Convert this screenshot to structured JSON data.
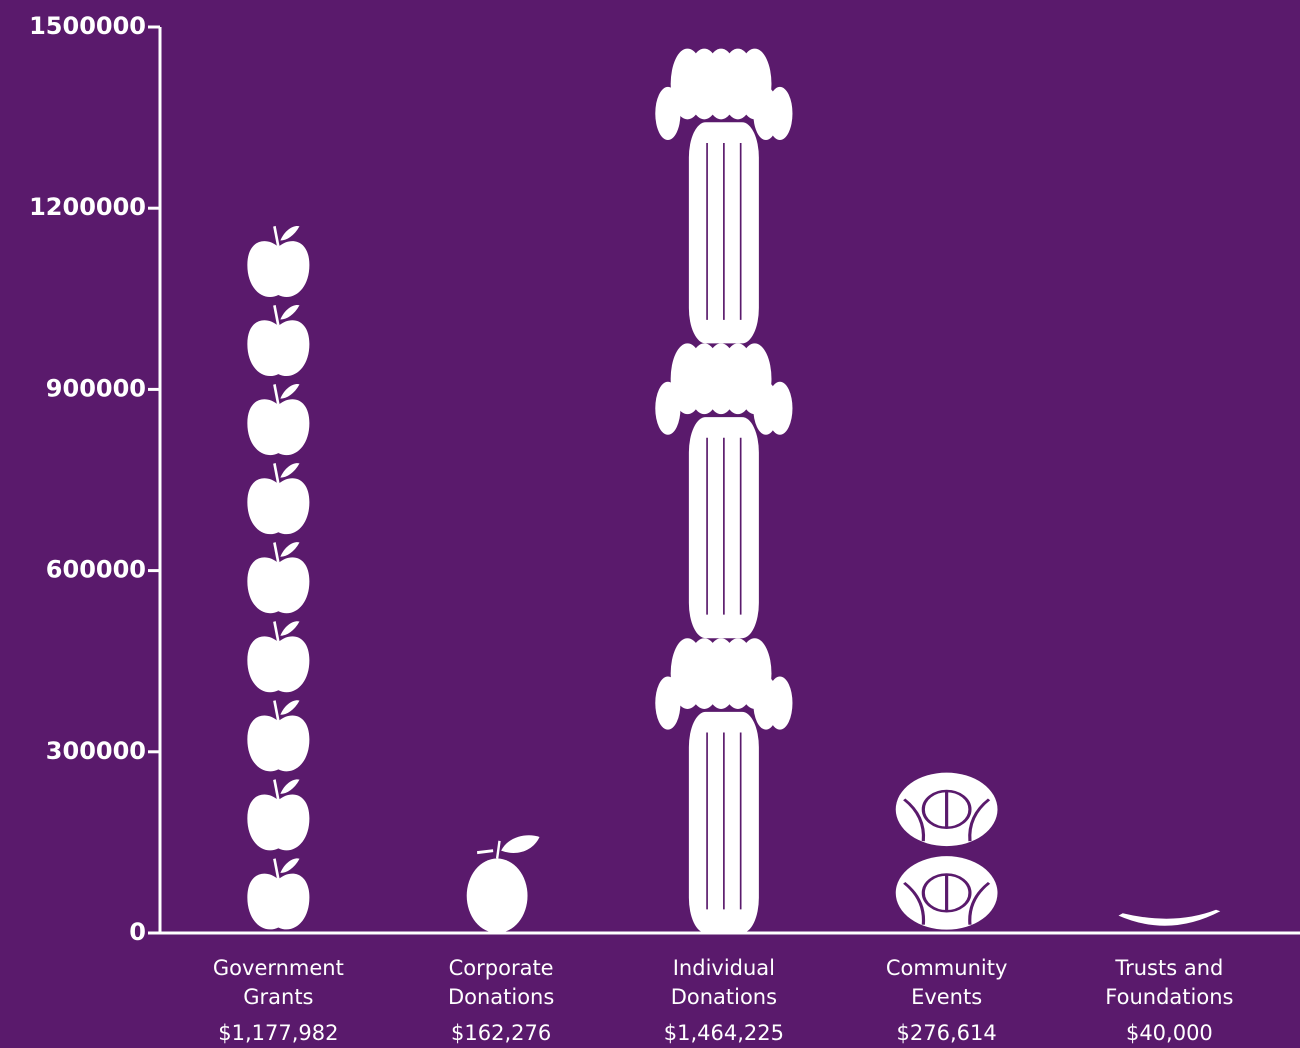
{
  "chart_data": {
    "type": "pictogram",
    "categories": [
      "Government Grants",
      "Corporate Donations",
      "Individual Donations",
      "Community Events",
      "Trusts and Foundations"
    ],
    "values": [
      1177982,
      162276,
      1464225,
      276614,
      40000
    ],
    "value_labels": [
      "$1,177,982",
      "$162,276",
      "$1,464,225",
      "$276,614",
      "$40,000"
    ],
    "color": "#ffffff",
    "background": "#5a1a6c",
    "ylim": [
      0,
      1500000
    ],
    "yticks": [
      0,
      300000,
      600000,
      900000,
      1200000,
      1500000
    ]
  }
}
